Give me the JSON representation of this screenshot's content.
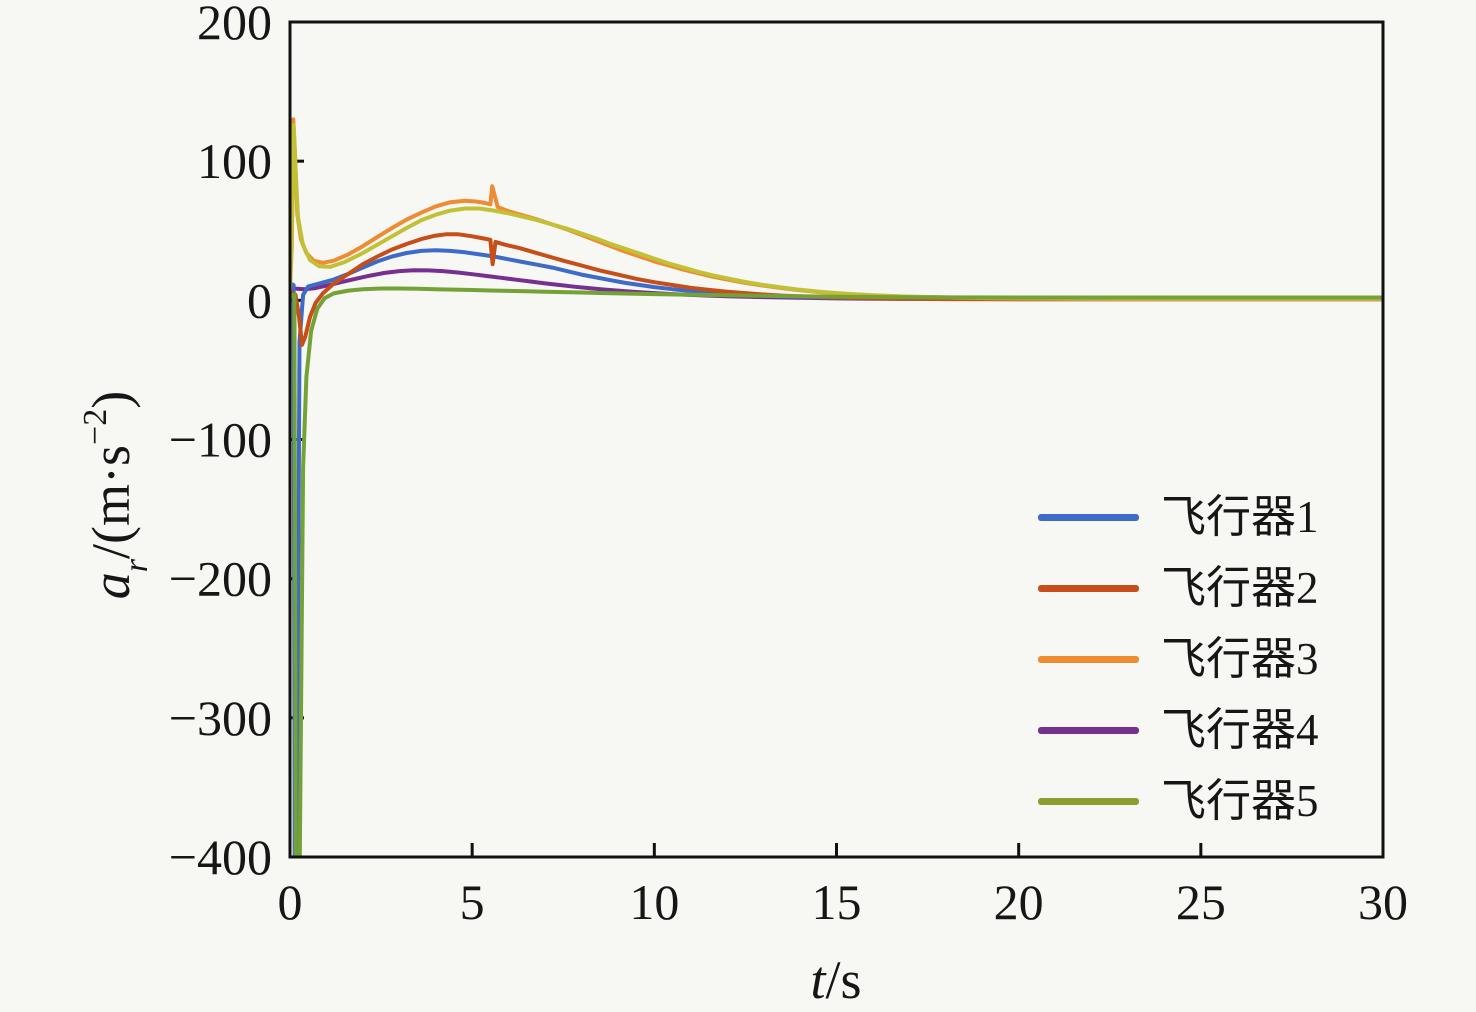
{
  "figure": {
    "background": "#f7f7f4",
    "frame_color": "#111111"
  },
  "chart_data": {
    "type": "line",
    "title": "",
    "xlabel": "t/s",
    "ylabel": "a_r/(m·s^-2)",
    "xlabel_parts": {
      "var": "t",
      "rest": "/s"
    },
    "ylabel_parts": {
      "var": "a",
      "sub": "r",
      "pre": "/(m·s",
      "sup": "−2",
      "post": ")"
    },
    "xlim": [
      0,
      30
    ],
    "ylim": [
      -400,
      200
    ],
    "xticks": {
      "values": [
        0,
        5,
        10,
        15,
        20,
        25,
        30
      ],
      "labels": [
        "0",
        "5",
        "10",
        "15",
        "20",
        "25",
        "30"
      ]
    },
    "yticks": {
      "values": [
        200,
        100,
        0,
        -100,
        -200,
        -300,
        -400
      ],
      "labels": [
        "200",
        "100",
        "0",
        "−100",
        "−200",
        "−300",
        "−400"
      ]
    },
    "grid": false,
    "legend_position": "inside-lower-right",
    "series": [
      {
        "name": "飞行器1",
        "color": "#3E6BC8",
        "points": [
          [
            0,
            12
          ],
          [
            0.1,
            11
          ],
          [
            0.13,
            -400
          ],
          [
            0.19,
            -400
          ],
          [
            0.26,
            -30
          ],
          [
            0.36,
            4
          ],
          [
            0.5,
            10
          ],
          [
            0.8,
            12
          ],
          [
            1.2,
            15
          ],
          [
            1.6,
            19
          ],
          [
            2.0,
            23.5
          ],
          [
            2.4,
            28
          ],
          [
            2.8,
            31.5
          ],
          [
            3.2,
            34
          ],
          [
            3.6,
            35.5
          ],
          [
            4.0,
            36
          ],
          [
            4.4,
            35.5
          ],
          [
            4.8,
            34.5
          ],
          [
            5.2,
            33
          ],
          [
            5.6,
            31.5
          ],
          [
            6.0,
            29.5
          ],
          [
            6.4,
            27.5
          ],
          [
            6.8,
            25.5
          ],
          [
            7.2,
            23.5
          ],
          [
            7.6,
            21
          ],
          [
            8.0,
            18.5
          ],
          [
            8.4,
            16.5
          ],
          [
            8.8,
            14.5
          ],
          [
            9.2,
            12.5
          ],
          [
            9.6,
            11
          ],
          [
            10,
            9.5
          ],
          [
            10.5,
            8
          ],
          [
            11,
            6.8
          ],
          [
            11.5,
            5.8
          ],
          [
            12,
            4.8
          ],
          [
            12.5,
            4
          ],
          [
            13,
            3.4
          ],
          [
            13.5,
            2.8
          ],
          [
            14,
            2.4
          ],
          [
            15,
            1.8
          ],
          [
            16,
            1.4
          ],
          [
            17,
            1.2
          ],
          [
            18,
            1.1
          ],
          [
            20,
            1
          ],
          [
            22,
            1
          ],
          [
            25,
            1
          ],
          [
            28,
            1
          ],
          [
            30,
            1
          ]
        ]
      },
      {
        "name": "飞行器2",
        "color": "#C74E18",
        "points": [
          [
            0,
            6
          ],
          [
            0.15,
            4
          ],
          [
            0.25,
            -12
          ],
          [
            0.33,
            -32
          ],
          [
            0.42,
            -26
          ],
          [
            0.55,
            -12
          ],
          [
            0.7,
            -2
          ],
          [
            0.9,
            5
          ],
          [
            1.2,
            12
          ],
          [
            1.6,
            19
          ],
          [
            2.0,
            26
          ],
          [
            2.4,
            31.5
          ],
          [
            2.8,
            36.5
          ],
          [
            3.2,
            40.5
          ],
          [
            3.6,
            44
          ],
          [
            4.0,
            46.5
          ],
          [
            4.3,
            47.5
          ],
          [
            4.6,
            47.5
          ],
          [
            5.0,
            46
          ],
          [
            5.3,
            44.5
          ],
          [
            5.5,
            43.5
          ],
          [
            5.56,
            26
          ],
          [
            5.64,
            42
          ],
          [
            5.9,
            40
          ],
          [
            6.3,
            37.5
          ],
          [
            6.7,
            34.5
          ],
          [
            7.1,
            31.5
          ],
          [
            7.5,
            28.5
          ],
          [
            8.0,
            25
          ],
          [
            8.5,
            21.5
          ],
          [
            9.0,
            18.5
          ],
          [
            9.5,
            15.5
          ],
          [
            10,
            13
          ],
          [
            10.5,
            11
          ],
          [
            11,
            9
          ],
          [
            11.5,
            7.5
          ],
          [
            12,
            6.2
          ],
          [
            12.5,
            5.2
          ],
          [
            13,
            4.2
          ],
          [
            13.5,
            3.4
          ],
          [
            14,
            2.8
          ],
          [
            15,
            2
          ],
          [
            16,
            1.4
          ],
          [
            17,
            1.1
          ],
          [
            18,
            0.9
          ],
          [
            20,
            0.8
          ],
          [
            25,
            0.8
          ],
          [
            30,
            0.8
          ]
        ]
      },
      {
        "name": "飞行器3",
        "color": "#EE8B33",
        "points": [
          [
            0,
            8
          ],
          [
            0.05,
            40
          ],
          [
            0.09,
            130
          ],
          [
            0.13,
            110
          ],
          [
            0.2,
            62
          ],
          [
            0.3,
            44
          ],
          [
            0.45,
            34
          ],
          [
            0.65,
            28.5
          ],
          [
            0.9,
            27
          ],
          [
            1.2,
            28.5
          ],
          [
            1.6,
            33
          ],
          [
            2.0,
            39
          ],
          [
            2.4,
            45.5
          ],
          [
            2.8,
            52
          ],
          [
            3.2,
            58
          ],
          [
            3.6,
            63
          ],
          [
            4.0,
            67.5
          ],
          [
            4.4,
            70.5
          ],
          [
            4.8,
            71.5
          ],
          [
            5.1,
            71
          ],
          [
            5.35,
            70
          ],
          [
            5.5,
            69
          ],
          [
            5.55,
            82
          ],
          [
            5.62,
            75
          ],
          [
            5.7,
            67
          ],
          [
            6.0,
            64
          ],
          [
            6.4,
            61
          ],
          [
            6.8,
            58
          ],
          [
            7.2,
            54.5
          ],
          [
            7.6,
            51
          ],
          [
            8.0,
            47
          ],
          [
            8.4,
            43
          ],
          [
            8.8,
            39
          ],
          [
            9.2,
            35
          ],
          [
            9.6,
            31.5
          ],
          [
            10,
            28
          ],
          [
            10.4,
            25
          ],
          [
            10.8,
            22
          ],
          [
            11.2,
            19.5
          ],
          [
            11.6,
            17
          ],
          [
            12,
            15
          ],
          [
            12.5,
            12.5
          ],
          [
            13,
            10.5
          ],
          [
            13.5,
            8.8
          ],
          [
            14,
            7.2
          ],
          [
            14.5,
            6
          ],
          [
            15,
            5
          ],
          [
            15.5,
            4.2
          ],
          [
            16,
            3.5
          ],
          [
            17,
            2.5
          ],
          [
            18,
            2
          ],
          [
            19,
            1.6
          ],
          [
            20,
            1.3
          ],
          [
            22,
            1.1
          ],
          [
            25,
            1
          ],
          [
            28,
            1
          ],
          [
            30,
            1
          ]
        ]
      },
      {
        "name": "飞行器4",
        "color": "#76308F",
        "points": [
          [
            0,
            9
          ],
          [
            0.2,
            8.3
          ],
          [
            0.4,
            8
          ],
          [
            0.7,
            8.8
          ],
          [
            1.0,
            10.5
          ],
          [
            1.4,
            13
          ],
          [
            1.8,
            15.5
          ],
          [
            2.2,
            17.8
          ],
          [
            2.6,
            19.7
          ],
          [
            3.0,
            21
          ],
          [
            3.4,
            21.6
          ],
          [
            3.8,
            21.5
          ],
          [
            4.2,
            21
          ],
          [
            4.6,
            20
          ],
          [
            5.0,
            18.8
          ],
          [
            5.4,
            17.5
          ],
          [
            5.8,
            16.2
          ],
          [
            6.2,
            14.8
          ],
          [
            6.6,
            13.5
          ],
          [
            7.0,
            12.2
          ],
          [
            7.4,
            11
          ],
          [
            7.8,
            9.8
          ],
          [
            8.2,
            8.8
          ],
          [
            8.6,
            7.8
          ],
          [
            9.0,
            7
          ],
          [
            9.5,
            6
          ],
          [
            10,
            5.2
          ],
          [
            10.5,
            4.5
          ],
          [
            11,
            3.9
          ],
          [
            11.5,
            3.4
          ],
          [
            12,
            3
          ],
          [
            13,
            2.3
          ],
          [
            14,
            1.8
          ],
          [
            15,
            1.4
          ],
          [
            16,
            1.2
          ],
          [
            18,
            1
          ],
          [
            20,
            0.9
          ],
          [
            25,
            0.9
          ],
          [
            30,
            0.9
          ]
        ]
      },
      {
        "name": "飞行器5",
        "color": "#8C9E2F",
        "line_color": "#74A236",
        "points": [
          [
            0,
            3
          ],
          [
            0.12,
            4
          ],
          [
            0.16,
            -400
          ],
          [
            0.27,
            -400
          ],
          [
            0.36,
            -120
          ],
          [
            0.45,
            -55
          ],
          [
            0.58,
            -22
          ],
          [
            0.75,
            -6
          ],
          [
            0.95,
            1.5
          ],
          [
            1.2,
            5
          ],
          [
            1.6,
            7
          ],
          [
            2.0,
            8
          ],
          [
            2.5,
            8.5
          ],
          [
            3.0,
            8.5
          ],
          [
            3.5,
            8.3
          ],
          [
            4.0,
            8
          ],
          [
            4.5,
            7.7
          ],
          [
            5.0,
            7.4
          ],
          [
            5.5,
            7.1
          ],
          [
            6.0,
            6.8
          ],
          [
            6.5,
            6.5
          ],
          [
            7.0,
            6.2
          ],
          [
            7.5,
            5.9
          ],
          [
            8.0,
            5.6
          ],
          [
            8.5,
            5.3
          ],
          [
            9.0,
            5
          ],
          [
            9.5,
            4.8
          ],
          [
            10,
            4.5
          ],
          [
            11,
            4
          ],
          [
            12,
            3.6
          ],
          [
            13,
            3.2
          ],
          [
            14,
            2.9
          ],
          [
            15,
            2.6
          ],
          [
            16,
            2.4
          ],
          [
            17,
            2.2
          ],
          [
            18,
            2.1
          ],
          [
            20,
            2
          ],
          [
            22,
            2
          ],
          [
            25,
            2
          ],
          [
            28,
            2
          ],
          [
            30,
            2
          ]
        ]
      }
    ],
    "overlay_trace": {
      "color": "#C2C136",
      "points": [
        [
          0,
          10
        ],
        [
          0.06,
          60
        ],
        [
          0.1,
          126
        ],
        [
          0.15,
          95
        ],
        [
          0.22,
          60
        ],
        [
          0.35,
          40
        ],
        [
          0.55,
          29
        ],
        [
          0.8,
          24.5
        ],
        [
          1.1,
          24
        ],
        [
          1.5,
          27.5
        ],
        [
          2.0,
          34
        ],
        [
          2.4,
          40
        ],
        [
          2.8,
          46
        ],
        [
          3.2,
          52
        ],
        [
          3.6,
          57.5
        ],
        [
          4.0,
          61.5
        ],
        [
          4.4,
          64.5
        ],
        [
          4.8,
          66
        ],
        [
          5.2,
          66
        ],
        [
          5.6,
          64.5
        ],
        [
          6.0,
          62.5
        ],
        [
          6.4,
          60
        ],
        [
          6.8,
          57.5
        ],
        [
          7.2,
          54.5
        ],
        [
          7.6,
          51.5
        ],
        [
          8.0,
          48
        ],
        [
          8.4,
          44.5
        ],
        [
          8.8,
          40.5
        ],
        [
          9.2,
          37
        ],
        [
          9.6,
          33.5
        ],
        [
          10,
          30
        ],
        [
          10.4,
          26.5
        ],
        [
          10.8,
          23.5
        ],
        [
          11.2,
          20.5
        ],
        [
          11.6,
          18
        ],
        [
          12,
          15.8
        ],
        [
          12.5,
          13.2
        ],
        [
          13,
          11
        ],
        [
          13.5,
          9.2
        ],
        [
          14,
          7.6
        ],
        [
          14.5,
          6.3
        ],
        [
          15,
          5.2
        ],
        [
          15.5,
          4.4
        ],
        [
          16,
          3.7
        ],
        [
          17,
          2.7
        ],
        [
          18,
          2.1
        ],
        [
          19,
          1.7
        ],
        [
          20,
          1.4
        ],
        [
          22,
          1.2
        ],
        [
          25,
          1.1
        ],
        [
          28,
          1.1
        ],
        [
          30,
          1.1
        ]
      ]
    },
    "legend": [
      {
        "label": "飞行器1",
        "color": "#3E6BC8"
      },
      {
        "label": "飞行器2",
        "color": "#C74E18"
      },
      {
        "label": "飞行器3",
        "color": "#EE8B33"
      },
      {
        "label": "飞行器4",
        "color": "#76308F"
      },
      {
        "label": "飞行器5",
        "color": "#8C9E2F"
      }
    ]
  }
}
